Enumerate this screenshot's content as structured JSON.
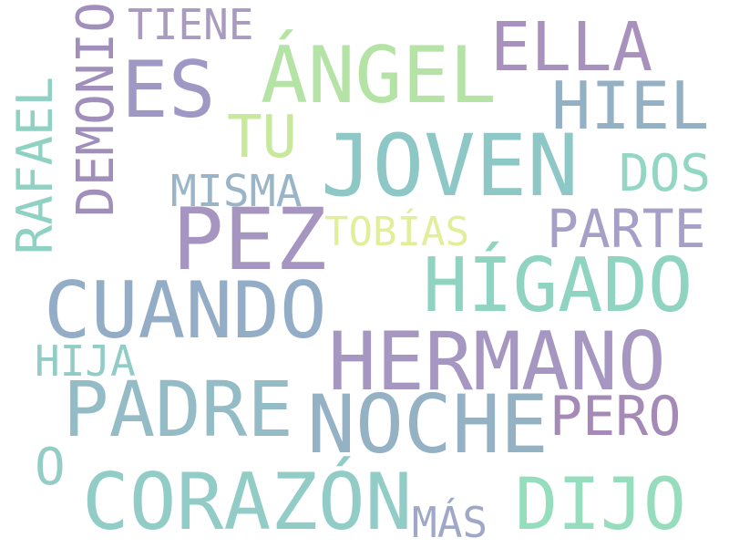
{
  "words": [
    {
      "text": "TIENE",
      "color": "#a99ac0"
    },
    {
      "text": "DEMONIO",
      "color": "#a08fbb"
    },
    {
      "text": "ES",
      "color": "#9f98c4"
    },
    {
      "text": "ÁNGEL",
      "color": "#b5e3a6"
    },
    {
      "text": "ELLA",
      "color": "#a891bc"
    },
    {
      "text": "HIEL",
      "color": "#93b0c5"
    },
    {
      "text": "TU",
      "color": "#c8e89c"
    },
    {
      "text": "RAFAEL",
      "color": "#8fd1c3"
    },
    {
      "text": "JOVEN",
      "color": "#8dc7c6"
    },
    {
      "text": "DOS",
      "color": "#93d6c3"
    },
    {
      "text": "MISMA",
      "color": "#9bb5c8"
    },
    {
      "text": "PEZ",
      "color": "#a695c1"
    },
    {
      "text": "TOBÍAS",
      "color": "#e3ee9b"
    },
    {
      "text": "PARTE",
      "color": "#a7a0c6"
    },
    {
      "text": "HÍGADO",
      "color": "#8fd3c1"
    },
    {
      "text": "CUANDO",
      "color": "#94adc6"
    },
    {
      "text": "HERMANO",
      "color": "#a597c1"
    },
    {
      "text": "HIJA",
      "color": "#91cdc6"
    },
    {
      "text": "PADRE",
      "color": "#94bcc6"
    },
    {
      "text": "NOCHE",
      "color": "#95b2c5"
    },
    {
      "text": "PERO",
      "color": "#a589b7"
    },
    {
      "text": "O",
      "color": "#94cdc6"
    },
    {
      "text": "CORAZÓN",
      "color": "#92ccc6"
    },
    {
      "text": "MÁS",
      "color": "#a0a8c8"
    },
    {
      "text": "DIJO",
      "color": "#96ddbe"
    }
  ]
}
